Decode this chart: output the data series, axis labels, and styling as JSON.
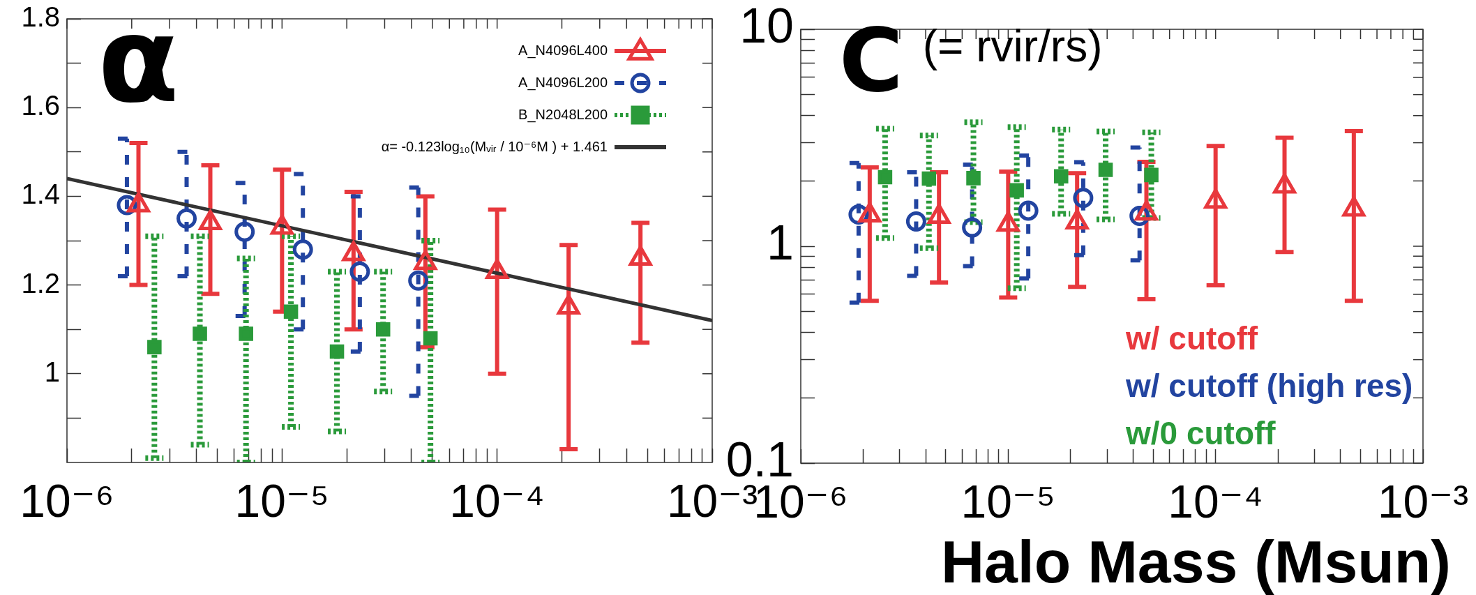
{
  "chart_data": [
    {
      "type": "scatter",
      "title": "α",
      "log": "x",
      "legend": "top right",
      "grid": false,
      "xlim": [
        1e-06,
        0.001
      ],
      "xticks": [
        {
          "value": 1e-06,
          "label": "10⁻⁶"
        },
        {
          "value": 2e-06,
          "label": null
        },
        {
          "value": 3e-06,
          "label": null
        },
        {
          "value": 4e-06,
          "label": null
        },
        {
          "value": 5e-06,
          "label": null
        },
        {
          "value": 6e-06,
          "label": null
        },
        {
          "value": 7e-06,
          "label": null
        },
        {
          "value": 8e-06,
          "label": null
        },
        {
          "value": 9e-06,
          "label": null
        },
        {
          "value": 1e-05,
          "label": "10⁻⁵"
        },
        {
          "value": 2e-05,
          "label": null
        },
        {
          "value": 3e-05,
          "label": null
        },
        {
          "value": 4e-05,
          "label": null
        },
        {
          "value": 5e-05,
          "label": null
        },
        {
          "value": 6e-05,
          "label": null
        },
        {
          "value": 7e-05,
          "label": null
        },
        {
          "value": 8e-05,
          "label": null
        },
        {
          "value": 9e-05,
          "label": null
        },
        {
          "value": 0.0001,
          "label": "10⁻⁴"
        },
        {
          "value": 0.0002,
          "label": null
        },
        {
          "value": 0.0003,
          "label": null
        },
        {
          "value": 0.0004,
          "label": null
        },
        {
          "value": 0.0005,
          "label": null
        },
        {
          "value": 0.0006,
          "label": null
        },
        {
          "value": 0.0007,
          "label": null
        },
        {
          "value": 0.0008,
          "label": null
        },
        {
          "value": 0.0009,
          "label": null
        },
        {
          "value": 0.001,
          "label": "10⁻³"
        }
      ],
      "ylim": [
        0.8,
        1.8
      ],
      "yticks": [
        {
          "value": 0.9,
          "label": null
        },
        1,
        {
          "value": 1.1,
          "label": null
        },
        1.2,
        {
          "value": 1.3,
          "label": null
        },
        1.4,
        {
          "value": 1.5,
          "label": null
        },
        1.6,
        {
          "value": 1.7,
          "label": null
        },
        1.8
      ],
      "series": [
        {
          "name": "A_N4096L400",
          "type": "scatter",
          "color": "#e8383d",
          "marker": "triangle",
          "line_style": "solid",
          "x": [
            2.15e-06,
            4.64e-06,
            1e-05,
            2.15e-05,
            4.64e-05,
            0.0001,
            0.000215,
            0.000464
          ],
          "values": [
            1.38,
            1.34,
            1.33,
            1.27,
            1.25,
            1.23,
            1.15,
            1.26
          ],
          "errors": [
            [
              1.2,
              1.52
            ],
            [
              1.18,
              1.47
            ],
            [
              1.14,
              1.46
            ],
            [
              1.1,
              1.41
            ],
            [
              1.06,
              1.4
            ],
            [
              1.0,
              1.37
            ],
            [
              0.83,
              1.29
            ],
            [
              1.07,
              1.34
            ]
          ]
        },
        {
          "name": "A_N4096L200",
          "type": "scatter",
          "color": "#2244a0",
          "marker": "circle",
          "line_style": "dashed",
          "x": [
            1.9e-06,
            3.6e-06,
            6.7e-06,
            1.25e-05,
            2.3e-05,
            4.3e-05
          ],
          "values": [
            1.38,
            1.35,
            1.32,
            1.28,
            1.23,
            1.21
          ],
          "errors": [
            [
              1.22,
              1.53
            ],
            [
              1.22,
              1.5
            ],
            [
              1.13,
              1.43
            ],
            [
              1.1,
              1.45
            ],
            [
              1.05,
              1.4
            ],
            [
              0.95,
              1.42
            ]
          ]
        },
        {
          "name": "B_N2048L200",
          "type": "scatter",
          "color": "#2a9a3a",
          "marker": "square",
          "line_style": "dotted",
          "x": [
            2.55e-06,
            4.15e-06,
            6.8e-06,
            1.1e-05,
            1.8e-05,
            2.95e-05,
            4.9e-05
          ],
          "values": [
            1.06,
            1.09,
            1.09,
            1.14,
            1.05,
            1.1,
            1.08
          ],
          "errors": [
            [
              0.81,
              1.31
            ],
            [
              0.84,
              1.31
            ],
            [
              0.8,
              1.26
            ],
            [
              0.88,
              1.31
            ],
            [
              0.87,
              1.23
            ],
            [
              0.96,
              1.23
            ],
            [
              0.8,
              1.3
            ]
          ]
        },
        {
          "name": "α= -0.123log₁₀(Mᵥᵢᵣ / 10⁻⁶M ) + 1.461",
          "type": "line",
          "color": "#333333",
          "line_style": "solid",
          "x": [
            1e-06,
            0.001
          ],
          "values": [
            1.44,
            1.12
          ]
        }
      ]
    },
    {
      "type": "scatter",
      "title": "C",
      "subtitle": "(= rvir/rs)",
      "xlabel": "Halo Mass (Msun)",
      "log": "xy",
      "legend": "bottom right",
      "grid": false,
      "xlim": [
        1e-06,
        0.001
      ],
      "xticks": [
        {
          "value": 1e-06,
          "label": "10⁻⁶"
        },
        {
          "value": 2e-06,
          "label": null
        },
        {
          "value": 3e-06,
          "label": null
        },
        {
          "value": 4e-06,
          "label": null
        },
        {
          "value": 5e-06,
          "label": null
        },
        {
          "value": 6e-06,
          "label": null
        },
        {
          "value": 7e-06,
          "label": null
        },
        {
          "value": 8e-06,
          "label": null
        },
        {
          "value": 9e-06,
          "label": null
        },
        {
          "value": 1e-05,
          "label": "10⁻⁵"
        },
        {
          "value": 2e-05,
          "label": null
        },
        {
          "value": 3e-05,
          "label": null
        },
        {
          "value": 4e-05,
          "label": null
        },
        {
          "value": 5e-05,
          "label": null
        },
        {
          "value": 6e-05,
          "label": null
        },
        {
          "value": 7e-05,
          "label": null
        },
        {
          "value": 8e-05,
          "label": null
        },
        {
          "value": 9e-05,
          "label": null
        },
        {
          "value": 0.0001,
          "label": "10⁻⁴"
        },
        {
          "value": 0.0002,
          "label": null
        },
        {
          "value": 0.0003,
          "label": null
        },
        {
          "value": 0.0004,
          "label": null
        },
        {
          "value": 0.0005,
          "label": null
        },
        {
          "value": 0.0006,
          "label": null
        },
        {
          "value": 0.0007,
          "label": null
        },
        {
          "value": 0.0008,
          "label": null
        },
        {
          "value": 0.0009,
          "label": null
        },
        {
          "value": 0.001,
          "label": "10⁻³"
        }
      ],
      "ylim": [
        0.1,
        10
      ],
      "yticks": [
        0.1,
        {
          "value": 0.2,
          "label": null
        },
        {
          "value": 0.3,
          "label": null
        },
        {
          "value": 0.4,
          "label": null
        },
        {
          "value": 0.5,
          "label": null
        },
        {
          "value": 0.6,
          "label": null
        },
        {
          "value": 0.7,
          "label": null
        },
        {
          "value": 0.8,
          "label": null
        },
        {
          "value": 0.9,
          "label": null
        },
        1,
        {
          "value": 2,
          "label": null
        },
        {
          "value": 3,
          "label": null
        },
        {
          "value": 4,
          "label": null
        },
        {
          "value": 5,
          "label": null
        },
        {
          "value": 6,
          "label": null
        },
        {
          "value": 7,
          "label": null
        },
        {
          "value": 8,
          "label": null
        },
        {
          "value": 9,
          "label": null
        },
        10
      ],
      "series": [
        {
          "name": "w/ cutoff",
          "type": "scatter",
          "color": "#e8383d",
          "marker": "triangle",
          "line_style": "solid",
          "x": [
            2.15e-06,
            4.64e-06,
            1e-05,
            2.15e-05,
            4.64e-05,
            0.0001,
            0.000215,
            0.000464
          ],
          "values": [
            1.39,
            1.37,
            1.26,
            1.29,
            1.42,
            1.61,
            1.89,
            1.48
          ],
          "errors": [
            [
              0.56,
              2.31
            ],
            [
              0.68,
              2.19
            ],
            [
              0.58,
              2.21
            ],
            [
              0.65,
              2.17
            ],
            [
              0.57,
              2.45
            ],
            [
              0.66,
              2.9
            ],
            [
              0.94,
              3.16
            ],
            [
              0.56,
              3.39
            ]
          ]
        },
        {
          "name": "w/ cutoff (high res)",
          "type": "scatter",
          "color": "#2244a0",
          "marker": "circle",
          "line_style": "dashed",
          "x": [
            1.9e-06,
            3.6e-06,
            6.7e-06,
            1.25e-05,
            2.3e-05,
            4.3e-05
          ],
          "values": [
            1.4,
            1.3,
            1.22,
            1.46,
            1.67,
            1.38
          ],
          "errors": [
            [
              0.55,
              2.42
            ],
            [
              0.73,
              2.19
            ],
            [
              0.81,
              2.38
            ],
            [
              0.71,
              2.62
            ],
            [
              0.91,
              2.44
            ],
            [
              0.86,
              2.85
            ]
          ]
        },
        {
          "name": "w/0 cutoff",
          "type": "scatter",
          "color": "#2a9a3a",
          "marker": "square",
          "line_style": "dotted",
          "x": [
            2.55e-06,
            4.15e-06,
            6.8e-06,
            1.1e-05,
            1.8e-05,
            2.95e-05,
            4.9e-05
          ],
          "values": [
            2.08,
            2.05,
            2.06,
            1.81,
            2.1,
            2.25,
            2.13
          ],
          "errors": [
            [
              1.09,
              3.48
            ],
            [
              0.98,
              3.24
            ],
            [
              1.29,
              3.73
            ],
            [
              0.64,
              3.54
            ],
            [
              1.41,
              3.45
            ],
            [
              1.33,
              3.38
            ],
            [
              1.35,
              3.35
            ]
          ]
        }
      ]
    }
  ]
}
